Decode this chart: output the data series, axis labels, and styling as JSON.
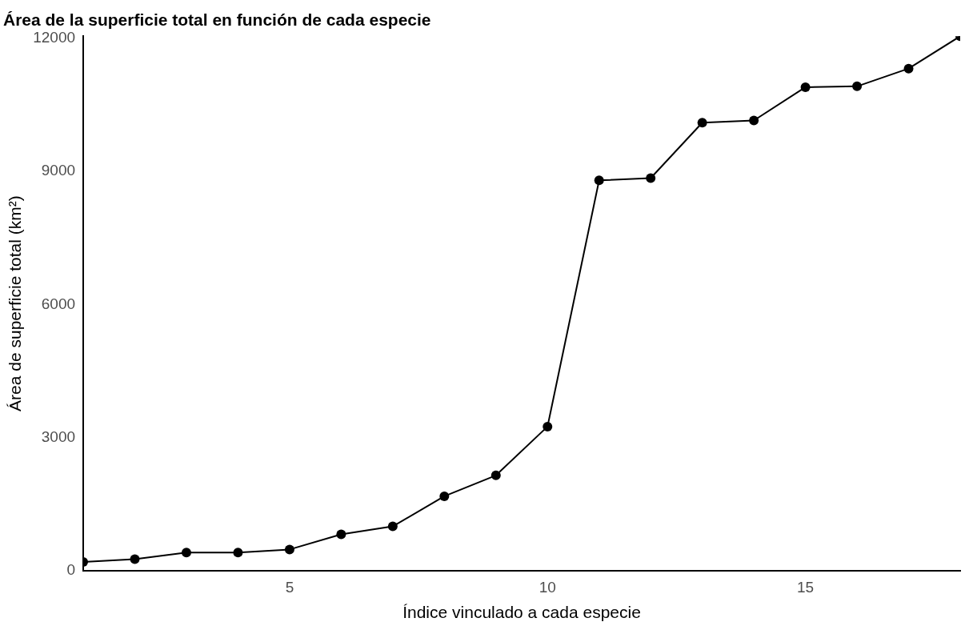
{
  "chart_data": {
    "type": "line",
    "title": "Área de la superficie total en función de cada especie",
    "xlabel": "Índice vinculado a cada especie",
    "ylabel": "Área de superficie total (km²)",
    "x": [
      1,
      2,
      3,
      4,
      5,
      6,
      7,
      8,
      9,
      10,
      11,
      12,
      13,
      14,
      15,
      16,
      17,
      18
    ],
    "series": [
      {
        "color": "#000000",
        "values": [
          200,
          260,
          410,
          410,
          480,
          820,
          1000,
          1680,
          2150,
          3250,
          8800,
          8850,
          10100,
          10150,
          10900,
          10920,
          11320,
          12050
        ]
      }
    ],
    "xlim": [
      1,
      18
    ],
    "xticks": [
      5,
      10,
      15
    ],
    "ylim": [
      0,
      12050
    ],
    "yticks": [
      0,
      3000,
      6000,
      9000,
      12000
    ],
    "grid": false,
    "legend": false,
    "marker": "circle",
    "line_style": "solid"
  }
}
